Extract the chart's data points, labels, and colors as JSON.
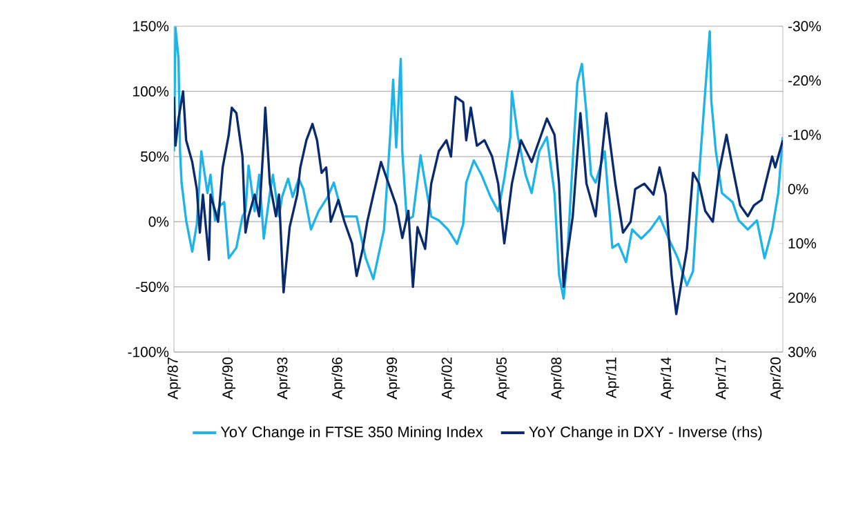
{
  "chart_data": {
    "type": "line",
    "grid": "y",
    "legend": "bottom",
    "marker": "none",
    "line_style": "solid",
    "xlim": [
      "1987-04",
      "2020-08"
    ],
    "ylim": [
      -100,
      150
    ],
    "y2lim": [
      30,
      -30
    ],
    "xticks": [
      {
        "value": "1987-04",
        "label": "Apr/87"
      },
      {
        "value": "1990-04",
        "label": "Apr/90"
      },
      {
        "value": "1993-04",
        "label": "Apr/93"
      },
      {
        "value": "1996-04",
        "label": "Apr/96"
      },
      {
        "value": "1999-04",
        "label": "Apr/99"
      },
      {
        "value": "2002-04",
        "label": "Apr/02"
      },
      {
        "value": "2005-04",
        "label": "Apr/05"
      },
      {
        "value": "2008-04",
        "label": "Apr/08"
      },
      {
        "value": "2011-04",
        "label": "Apr/11"
      },
      {
        "value": "2014-04",
        "label": "Apr/14"
      },
      {
        "value": "2017-04",
        "label": "Apr/17"
      },
      {
        "value": "2020-04",
        "label": "Apr/20"
      }
    ],
    "yticks": [
      {
        "value": -100,
        "label": "-100%"
      },
      {
        "value": -50,
        "label": "-50%"
      },
      {
        "value": 0,
        "label": "0%"
      },
      {
        "value": 50,
        "label": "50%"
      },
      {
        "value": 100,
        "label": "100%"
      },
      {
        "value": 150,
        "label": "150%"
      }
    ],
    "y2ticks": [
      {
        "value": -30,
        "label": "-30%"
      },
      {
        "value": -20,
        "label": "-20%"
      },
      {
        "value": -10,
        "label": "-10%"
      },
      {
        "value": 0,
        "label": "0%"
      },
      {
        "value": 10,
        "label": "10%"
      },
      {
        "value": 20,
        "label": "20%"
      },
      {
        "value": 30,
        "label": "30%"
      }
    ],
    "series": [
      {
        "name": "YoY Change in FTSE 350 Mining Index",
        "color": "#1eb4e8",
        "axis": "y",
        "x": [
          "1987-04",
          "1987-05",
          "1987-07",
          "1987-08",
          "1987-09",
          "1987-12",
          "1988-04",
          "1988-07",
          "1988-10",
          "1989-02",
          "1989-04",
          "1989-07",
          "1989-10",
          "1990-01",
          "1990-04",
          "1990-09",
          "1991-01",
          "1991-03",
          "1991-05",
          "1991-09",
          "1991-12",
          "1992-03",
          "1992-07",
          "1992-09",
          "1993-01",
          "1993-03",
          "1993-07",
          "1993-10",
          "1994-02",
          "1994-05",
          "1994-10",
          "1995-03",
          "1995-09",
          "1996-01",
          "1996-07",
          "1997-04",
          "1997-10",
          "1998-03",
          "1998-10",
          "1999-02",
          "1999-04",
          "1999-06",
          "1999-09",
          "1999-10",
          "2000-01",
          "2000-05",
          "2000-10",
          "2001-01",
          "2001-05",
          "2001-10",
          "2002-04",
          "2002-10",
          "2003-02",
          "2003-04",
          "2003-09",
          "2004-02",
          "2004-08",
          "2005-01",
          "2005-05",
          "2005-09",
          "2005-10",
          "2006-02",
          "2006-07",
          "2006-11",
          "2007-04",
          "2007-09",
          "2008-02",
          "2008-05",
          "2008-08",
          "2008-10",
          "2009-02",
          "2009-05",
          "2009-08",
          "2009-11",
          "2010-02",
          "2010-05",
          "2010-11",
          "2011-04",
          "2011-08",
          "2012-01",
          "2012-05",
          "2012-11",
          "2013-05",
          "2013-11",
          "2014-05",
          "2014-11",
          "2015-05",
          "2015-09",
          "2016-01",
          "2016-05",
          "2016-08",
          "2016-09",
          "2016-12",
          "2017-04",
          "2017-11",
          "2018-03",
          "2018-09",
          "2019-03",
          "2019-08",
          "2020-01",
          "2020-05",
          "2020-08"
        ],
        "values": [
          54,
          149,
          125,
          54,
          30,
          1,
          -23,
          -2,
          54,
          22,
          36,
          1,
          12,
          15,
          -28,
          -20,
          4,
          8,
          43,
          8,
          36,
          -13,
          22,
          36,
          4,
          19,
          33,
          19,
          33,
          25,
          -6,
          8,
          19,
          30,
          4,
          4,
          -28,
          -44,
          -6,
          65,
          109,
          57,
          125,
          54,
          1,
          4,
          51,
          30,
          4,
          1,
          -6,
          -17,
          -2,
          30,
          47,
          36,
          19,
          8,
          33,
          65,
          100,
          65,
          36,
          22,
          54,
          65,
          22,
          -41,
          -59,
          -34,
          47,
          107,
          121,
          83,
          36,
          30,
          54,
          -20,
          -17,
          -31,
          -6,
          -13,
          -6,
          4,
          -13,
          -28,
          -49,
          -38,
          36,
          100,
          146,
          93,
          54,
          22,
          15,
          1,
          -6,
          1,
          -28,
          -6,
          22,
          65
        ]
      },
      {
        "name": "YoY Change in DXY - Inverse (rhs)",
        "color": "#0a2a6e",
        "axis": "y2",
        "x": [
          "1987-04",
          "1987-05",
          "1987-07",
          "1987-10",
          "1987-12",
          "1988-04",
          "1988-07",
          "1988-09",
          "1988-11",
          "1989-03",
          "1989-04",
          "1989-09",
          "1989-12",
          "1990-04",
          "1990-06",
          "1990-09",
          "1991-01",
          "1991-03",
          "1991-05",
          "1991-09",
          "1991-12",
          "1992-03",
          "1992-04",
          "1992-07",
          "1992-11",
          "1993-01",
          "1993-04",
          "1993-08",
          "1994-01",
          "1994-03",
          "1994-07",
          "1994-11",
          "1995-02",
          "1995-05",
          "1995-08",
          "1995-11",
          "1996-04",
          "1996-08",
          "1997-01",
          "1997-04",
          "1997-08",
          "1997-11",
          "1998-03",
          "1998-08",
          "1999-01",
          "1999-06",
          "1999-10",
          "2000-02",
          "2000-05",
          "2000-08",
          "2001-01",
          "2001-05",
          "2001-10",
          "2002-03",
          "2002-06",
          "2002-09",
          "2003-02",
          "2003-04",
          "2003-07",
          "2003-11",
          "2004-04",
          "2004-09",
          "2005-01",
          "2005-05",
          "2005-10",
          "2006-04",
          "2006-11",
          "2007-04",
          "2007-09",
          "2008-02",
          "2008-05",
          "2008-08",
          "2008-10",
          "2009-02",
          "2009-07",
          "2009-11",
          "2010-05",
          "2010-12",
          "2011-06",
          "2011-11",
          "2012-04",
          "2012-07",
          "2013-01",
          "2013-07",
          "2013-11",
          "2014-03",
          "2014-07",
          "2014-10",
          "2015-02",
          "2015-05",
          "2015-09",
          "2016-01",
          "2016-05",
          "2016-10",
          "2017-02",
          "2017-07",
          "2017-11",
          "2018-04",
          "2018-09",
          "2019-01",
          "2019-06",
          "2020-01",
          "2020-03",
          "2020-08"
        ],
        "values": [
          -17,
          -8,
          -13,
          -18,
          -9,
          -5,
          0,
          8,
          1,
          13,
          1,
          6,
          -4,
          -10,
          -15,
          -14,
          -6,
          8,
          5,
          1,
          5,
          -9,
          -15,
          -1,
          5,
          1,
          19,
          7,
          1,
          -4,
          -9,
          -12,
          -9,
          -3,
          -4,
          6,
          2,
          6,
          10,
          16,
          11,
          6,
          1,
          -5,
          -1,
          3,
          9,
          4,
          18,
          7,
          11,
          -1,
          -7,
          -9,
          -6,
          -17,
          -16,
          -9,
          -15,
          -8,
          -9,
          -6,
          -1,
          10,
          -1,
          -9,
          -5,
          -9,
          -13,
          -10,
          -1,
          18,
          13,
          5,
          -14,
          -1,
          5,
          -14,
          -1,
          8,
          6,
          0,
          -1,
          1,
          -4,
          1,
          16,
          23,
          16,
          11,
          -3,
          -1,
          4,
          6,
          -3,
          -10,
          -4,
          3,
          5,
          3,
          2,
          -6,
          -4,
          -9
        ]
      }
    ]
  }
}
